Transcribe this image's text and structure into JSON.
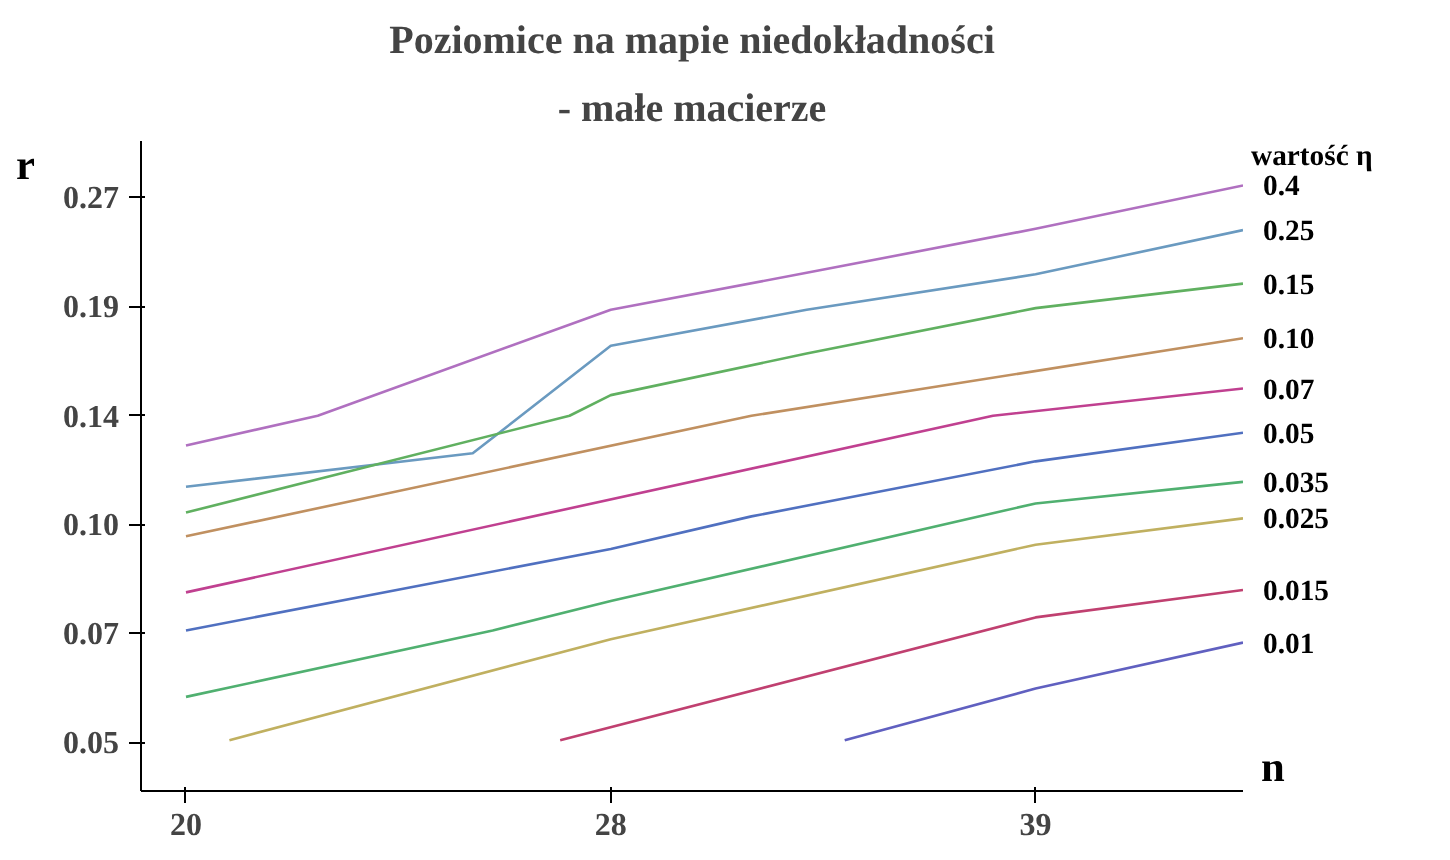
{
  "chart_data": {
    "type": "line",
    "title": "Poziomice na mapie niedokładności",
    "subtitle": "- małe macierze",
    "xlabel": "n",
    "ylabel": "r",
    "legend_title": "wartość η",
    "log": "xy",
    "grid": false,
    "marker": "none",
    "line_style": "solid",
    "xlim": [
      19.3,
      46.2
    ],
    "ylim": [
      0.043,
      0.32
    ],
    "xticks": [
      20,
      28,
      {
        "value": 39.2,
        "label": "39"
      }
    ],
    "yticks": [
      0.05,
      0.07,
      {
        "value": 0.098,
        "label": "0.10"
      },
      {
        "value": 0.137,
        "label": "0.14"
      },
      {
        "value": 0.192,
        "label": "0.19"
      },
      {
        "value": 0.269,
        "label": "0.27"
      }
    ],
    "series": [
      {
        "name": "0.4",
        "color": "#b070c0",
        "x": [
          20,
          22.2,
          28,
          32.7,
          39.2,
          46.2
        ],
        "values": [
          0.125,
          0.137,
          0.19,
          0.213,
          0.244,
          0.279
        ]
      },
      {
        "name": "0.25",
        "color": "#6a9ac0",
        "x": [
          20,
          25.1,
          28,
          32.7,
          39.2,
          46.2
        ],
        "values": [
          0.11,
          0.122,
          0.17,
          0.19,
          0.212,
          0.243
        ]
      },
      {
        "name": "0.15",
        "color": "#60b060",
        "x": [
          20,
          27.1,
          28,
          32.7,
          39.2,
          46.2
        ],
        "values": [
          0.1016,
          0.137,
          0.146,
          0.166,
          0.191,
          0.206
        ]
      },
      {
        "name": "0.10",
        "color": "#c09060",
        "x": [
          20,
          31.3,
          46.2
        ],
        "values": [
          0.0944,
          0.137,
          0.174
        ]
      },
      {
        "name": "0.07",
        "color": "#c04090",
        "x": [
          20,
          37.9,
          46.2
        ],
        "values": [
          0.0794,
          0.137,
          0.149
        ]
      },
      {
        "name": "0.05",
        "color": "#5070c0",
        "x": [
          20,
          28,
          31.3,
          39.2,
          46.2
        ],
        "values": [
          0.0706,
          0.0908,
          0.1004,
          0.119,
          0.13
        ]
      },
      {
        "name": "0.035",
        "color": "#50b070",
        "x": [
          20,
          25.5,
          28,
          39.2,
          46.2
        ],
        "values": [
          0.0575,
          0.0706,
          0.0773,
          0.1045,
          0.1117
        ]
      },
      {
        "name": "0.025",
        "color": "#c0b060",
        "x": [
          20.7,
          28,
          39.2,
          46.2
        ],
        "values": [
          0.0503,
          0.0687,
          0.092,
          0.0998
        ]
      },
      {
        "name": "0.015",
        "color": "#c04070",
        "x": [
          26.9,
          39.2,
          46.2
        ],
        "values": [
          0.0503,
          0.0735,
          0.08
        ]
      },
      {
        "name": "0.01",
        "color": "#6060c0",
        "x": [
          33.7,
          39.2,
          46.2
        ],
        "values": [
          0.0503,
          0.059,
          0.068
        ]
      }
    ]
  }
}
